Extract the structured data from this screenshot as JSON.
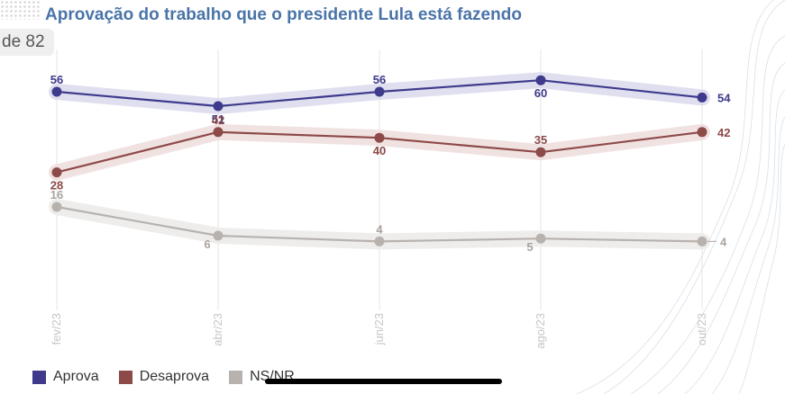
{
  "header": {
    "title": "Aprovação do trabalho que o presidente Lula está fazendo",
    "page_badge": "de 82"
  },
  "colors": {
    "aprova": "#3f3a8c",
    "desaprova": "#8c4a48",
    "nsnr": "#b8b2ae"
  },
  "chart_data": {
    "type": "line",
    "title": "Aprovação do trabalho que o presidente Lula está fazendo",
    "categories": [
      "fev/23",
      "abr/23",
      "jun/23",
      "ago/23",
      "out/23"
    ],
    "series": [
      {
        "name": "Aprova",
        "values": [
          56,
          51,
          56,
          60,
          54
        ]
      },
      {
        "name": "Desaprova",
        "values": [
          28,
          42,
          40,
          35,
          42
        ]
      },
      {
        "name": "NS/NR",
        "values": [
          16,
          6,
          4,
          5,
          4
        ]
      }
    ],
    "grid": "vertical",
    "legend": "bottom-left"
  }
}
